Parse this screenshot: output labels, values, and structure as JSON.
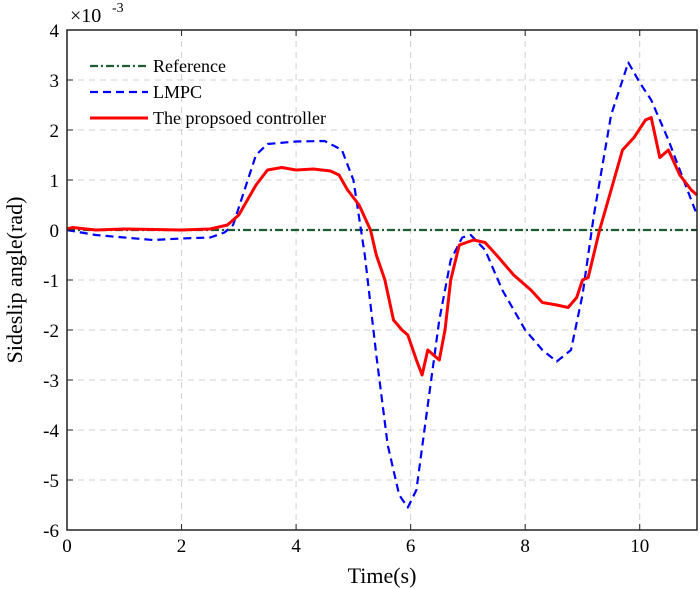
{
  "chart_data": {
    "type": "line",
    "title": "",
    "xlabel": "Time(s)",
    "ylabel": "Sideslip angle(rad)",
    "y_exponent_label": "×10",
    "y_exponent": "-3",
    "xlim": [
      0,
      11
    ],
    "ylim": [
      -6,
      4
    ],
    "xticks": [
      0,
      2,
      4,
      6,
      8,
      10
    ],
    "yticks": [
      -6,
      -5,
      -4,
      -3,
      -2,
      -1,
      0,
      1,
      2,
      3,
      4
    ],
    "grid": true,
    "legend_position": "top-left",
    "series": [
      {
        "name": "Reference",
        "color": "#1e5a32",
        "style": "dashdot",
        "x": [
          0,
          11
        ],
        "y": [
          0,
          0
        ]
      },
      {
        "name": "LMPC",
        "color": "#0000ff",
        "style": "dashed",
        "x": [
          0,
          0.5,
          1,
          1.5,
          2,
          2.5,
          2.75,
          2.9,
          3.1,
          3.3,
          3.5,
          4,
          4.5,
          4.8,
          5,
          5.2,
          5.4,
          5.6,
          5.8,
          5.95,
          6.1,
          6.3,
          6.5,
          6.7,
          6.9,
          7.05,
          7.3,
          7.6,
          8,
          8.3,
          8.55,
          8.8,
          9,
          9.2,
          9.5,
          9.8,
          10,
          10.2,
          10.5,
          10.8,
          11
        ],
        "y": [
          0,
          -0.1,
          -0.15,
          -0.2,
          -0.17,
          -0.15,
          -0.05,
          0.1,
          0.8,
          1.5,
          1.72,
          1.77,
          1.78,
          1.6,
          1.0,
          -0.5,
          -2.5,
          -4.3,
          -5.3,
          -5.55,
          -5.2,
          -3.5,
          -1.8,
          -0.6,
          -0.15,
          -0.1,
          -0.4,
          -1.2,
          -2.0,
          -2.4,
          -2.63,
          -2.4,
          -1.3,
          0.3,
          2.3,
          3.35,
          2.95,
          2.6,
          1.8,
          0.9,
          0.3
        ]
      },
      {
        "name": "The propsoed controller",
        "color": "#ff0000",
        "style": "solid",
        "x": [
          0,
          0.1,
          0.5,
          1,
          2,
          2.5,
          2.8,
          3,
          3.3,
          3.5,
          3.75,
          4,
          4.3,
          4.6,
          4.75,
          4.9,
          5.1,
          5.3,
          5.4,
          5.55,
          5.7,
          5.85,
          5.95,
          6.1,
          6.2,
          6.3,
          6.4,
          6.5,
          6.6,
          6.7,
          6.85,
          7.1,
          7.3,
          7.5,
          7.8,
          8.1,
          8.3,
          8.55,
          8.75,
          8.9,
          9,
          9.1,
          9.3,
          9.5,
          9.7,
          9.9,
          10.1,
          10.2,
          10.35,
          10.5,
          10.7,
          10.9,
          11
        ],
        "y": [
          0.02,
          0.05,
          0,
          0.02,
          0,
          0.02,
          0.1,
          0.3,
          0.9,
          1.2,
          1.25,
          1.2,
          1.22,
          1.18,
          1.1,
          0.8,
          0.5,
          0,
          -0.5,
          -1.0,
          -1.8,
          -2.0,
          -2.1,
          -2.6,
          -2.9,
          -2.4,
          -2.5,
          -2.6,
          -2.0,
          -1.0,
          -0.3,
          -0.2,
          -0.25,
          -0.5,
          -0.9,
          -1.2,
          -1.45,
          -1.5,
          -1.55,
          -1.35,
          -1.0,
          -0.95,
          0,
          0.8,
          1.6,
          1.85,
          2.2,
          2.25,
          1.45,
          1.6,
          1.1,
          0.8,
          0.7
        ]
      }
    ]
  }
}
